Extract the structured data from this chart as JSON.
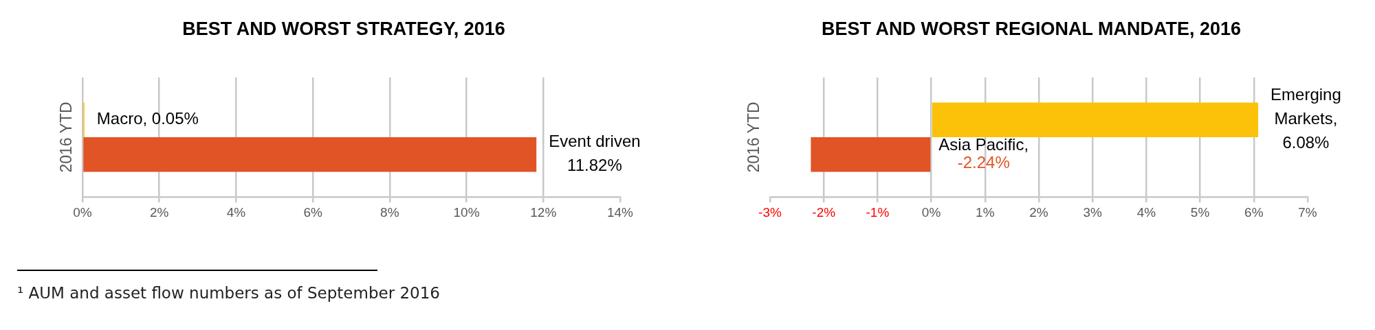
{
  "chart_data": [
    {
      "type": "bar",
      "orientation": "horizontal",
      "title": "BEST AND WORST STRATEGY, 2016",
      "categories": [
        "2016 YTD"
      ],
      "series": [
        {
          "color": "#fcc20a",
          "values": [
            0.05
          ],
          "value_labels": [
            "Macro, 0.05%"
          ]
        },
        {
          "color": "#e05426",
          "values": [
            11.82
          ],
          "value_labels": [
            "Event driven\n11.82%"
          ]
        }
      ],
      "xlim": [
        0,
        14
      ],
      "xticks": [
        {
          "value": 0,
          "label": "0%"
        },
        {
          "value": 2,
          "label": "2%"
        },
        {
          "value": 4,
          "label": "4%"
        },
        {
          "value": 6,
          "label": "6%"
        },
        {
          "value": 8,
          "label": "8%"
        },
        {
          "value": 10,
          "label": "10%"
        },
        {
          "value": 12,
          "label": "12%"
        },
        {
          "value": 14,
          "label": "14%"
        }
      ],
      "grid": "x",
      "annotations": [
        "¹ AUM and asset flow numbers as of September 2016"
      ]
    },
    {
      "type": "bar",
      "orientation": "horizontal",
      "title": "BEST AND WORST REGIONAL MANDATE, 2016",
      "categories": [
        "2016 YTD"
      ],
      "series": [
        {
          "color": "#fcc20a",
          "values": [
            6.08
          ],
          "value_labels": [
            "Emerging\nMarkets,\n6.08%"
          ]
        },
        {
          "color": "#e05426",
          "values": [
            -2.24
          ],
          "value_labels": [
            "Asia Pacific,\n-2.24%"
          ]
        }
      ],
      "xlim": [
        -3,
        7
      ],
      "xticks": [
        {
          "value": -3,
          "label": "-3%"
        },
        {
          "value": -2,
          "label": "-2%"
        },
        {
          "value": -1,
          "label": "-1%"
        },
        {
          "value": 0,
          "label": "0%"
        },
        {
          "value": 1,
          "label": "1%"
        },
        {
          "value": 2,
          "label": "2%"
        },
        {
          "value": 3,
          "label": "3%"
        },
        {
          "value": 4,
          "label": "4%"
        },
        {
          "value": 5,
          "label": "5%"
        },
        {
          "value": 6,
          "label": "6%"
        },
        {
          "value": 7,
          "label": "7%"
        }
      ],
      "grid": "x"
    }
  ]
}
